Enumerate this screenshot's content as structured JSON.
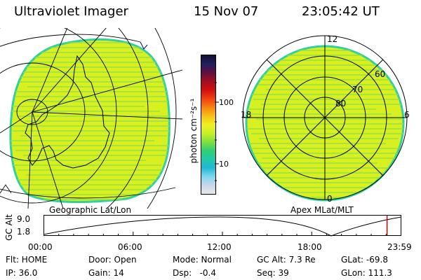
{
  "header": {
    "instrument": "Ultraviolet Imager",
    "date": "15 Nov 07",
    "time": "23:05:42 UT"
  },
  "colorbar": {
    "unit_label": "photon cm⁻²s⁻¹",
    "tick_100": "100",
    "tick_10": "10",
    "colors": [
      "#e8e8e8",
      "#c8d8e8",
      "#7fd8f0",
      "#20b8d8",
      "#20c8a8",
      "#30d070",
      "#80e040",
      "#c8f028",
      "#f0f020",
      "#f8c018",
      "#f88010",
      "#f04010",
      "#d01010",
      "#a01020",
      "#601040",
      "#202060",
      "#101030"
    ]
  },
  "left_panel": {
    "caption": "Geographic Lat/Lon",
    "fill_color": "#d8f020",
    "stripe_color": "#9ae040",
    "edge_color": "#30d0a0"
  },
  "right_panel": {
    "caption": "Apex MLat/MLT",
    "mlt_labels": {
      "top": "12",
      "left": "18",
      "right": "6",
      "bottom": "0"
    },
    "lat_labels": [
      "60",
      "70",
      "80"
    ]
  },
  "altitude_plot": {
    "ylabel": "GC Alt",
    "y_top": "9.0",
    "y_bottom": "1.8",
    "x_ticks": [
      "00:00",
      "06:00",
      "12:00",
      "18:00",
      "23:59"
    ],
    "current_time_fraction": 0.962,
    "marker_color": "#e00000"
  },
  "status": {
    "flt": "Flt: HOME",
    "ip": "IP: 36.0",
    "door": "Door: Open",
    "gain": "Gain: 14",
    "mode": "Mode: Normal",
    "dsp": "Dsp:   -0.4",
    "gc_alt": "GC Alt: 7.3 Re",
    "seq": "Seq: 39",
    "glat": "GLat: -69.8",
    "glon": "GLon: 111.3"
  }
}
